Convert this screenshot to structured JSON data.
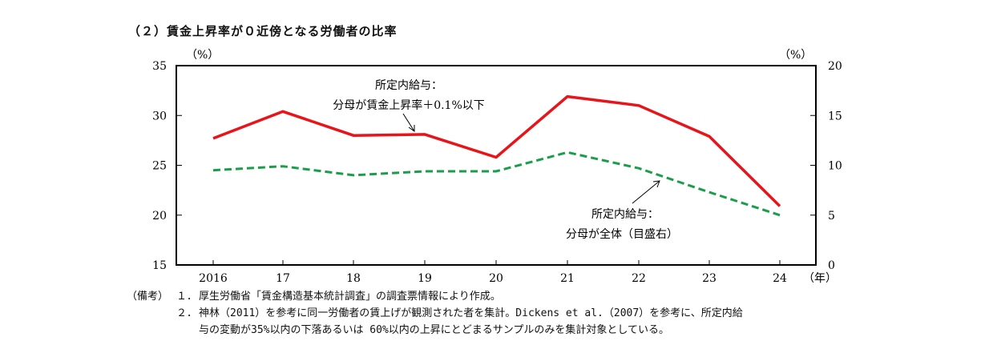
{
  "title": "（２）賃金上昇率が０近傍となる労働者の比率",
  "chart_data": {
    "type": "line",
    "x_labels": [
      "2016",
      "17",
      "18",
      "19",
      "20",
      "21",
      "22",
      "23",
      "24"
    ],
    "x_unit": "（年）",
    "left_axis": {
      "unit": "（%）",
      "min": 15,
      "max": 35,
      "ticks": [
        35,
        30,
        25,
        20,
        15
      ]
    },
    "right_axis": {
      "unit": "（%）",
      "min": 0,
      "max": 20,
      "ticks": [
        20,
        15,
        10,
        5,
        0
      ]
    },
    "series": [
      {
        "axis": "left",
        "color": "#e8141a",
        "style": "solid",
        "values": [
          27.7,
          30.4,
          28.0,
          28.1,
          25.8,
          31.9,
          31.0,
          27.9,
          20.9
        ]
      },
      {
        "axis": "right",
        "color": "#1a9e4a",
        "style": "dashed",
        "values": [
          9.5,
          9.9,
          9.0,
          9.4,
          9.4,
          11.3,
          9.7,
          7.3,
          5.0
        ]
      }
    ],
    "annotations": [
      {
        "lines": [
          "所定内給与：",
          "分母が賃金上昇率＋0.1%以下"
        ]
      },
      {
        "lines": [
          "所定内給与：",
          "分母が全体（目盛右）"
        ]
      }
    ]
  },
  "notes": {
    "head": "（備考）",
    "items": [
      {
        "num": "１．",
        "lines": [
          "厚生労働省「賃金構造基本統計調査」の調査票情報により作成。"
        ]
      },
      {
        "num": "２．",
        "lines": [
          "神林（2011）を参考に同一労働者の賃上げが観測された者を集計。Dickens et al.（2007）を参考に、所定内給",
          "与の変動が35%以内の下落あるいは 60%以内の上昇にとどまるサンプルのみを集計対象としている。"
        ]
      }
    ]
  }
}
